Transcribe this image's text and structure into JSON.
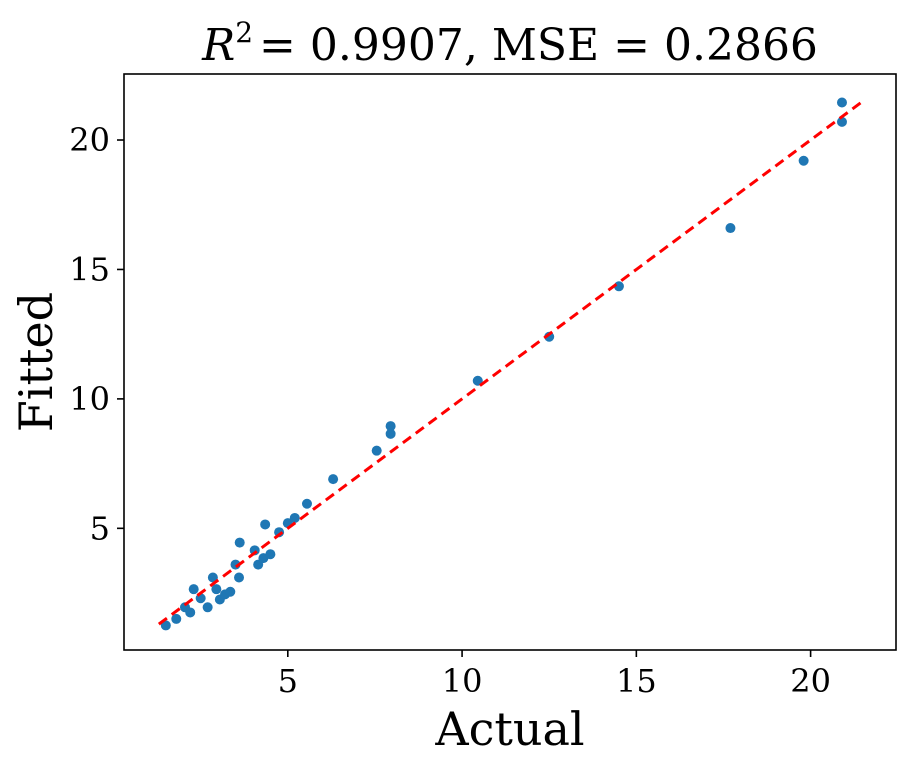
{
  "chart_data": {
    "type": "scatter",
    "title": {
      "r_symbol": "R",
      "r_exponent": "2",
      "text": "= 0.9907, MSE = 0.2866"
    },
    "xlabel": "Actual",
    "ylabel": "Fitted",
    "xlim": [
      0.3,
      22.45
    ],
    "ylim": [
      0.3,
      22.55
    ],
    "x_ticks": [
      5,
      10,
      15,
      20
    ],
    "y_ticks": [
      5,
      10,
      15,
      20
    ],
    "grid": false,
    "points": {
      "color": "#1f77b4",
      "x": [
        1.5,
        1.8,
        2.05,
        2.2,
        2.3,
        2.5,
        2.7,
        2.85,
        2.95,
        3.05,
        3.2,
        3.35,
        3.5,
        3.6,
        3.62,
        4.05,
        4.15,
        4.3,
        4.35,
        4.5,
        4.75,
        5.0,
        5.2,
        5.55,
        6.3,
        7.55,
        7.95,
        7.95,
        10.45,
        12.5,
        14.5,
        17.7,
        19.8,
        20.9,
        20.9
      ],
      "y": [
        1.25,
        1.5,
        1.95,
        1.75,
        2.65,
        2.3,
        1.95,
        3.1,
        2.65,
        2.25,
        2.45,
        2.55,
        3.6,
        3.1,
        4.45,
        4.15,
        3.6,
        3.85,
        5.15,
        4.0,
        4.85,
        5.2,
        5.4,
        5.95,
        6.9,
        8.0,
        8.65,
        8.95,
        10.7,
        12.4,
        14.35,
        16.6,
        19.2,
        20.7,
        21.45
      ]
    },
    "reference_line": {
      "type": "identity",
      "style": "dashed",
      "color": "#ff0000",
      "x_range": [
        1.3,
        21.5
      ]
    }
  }
}
